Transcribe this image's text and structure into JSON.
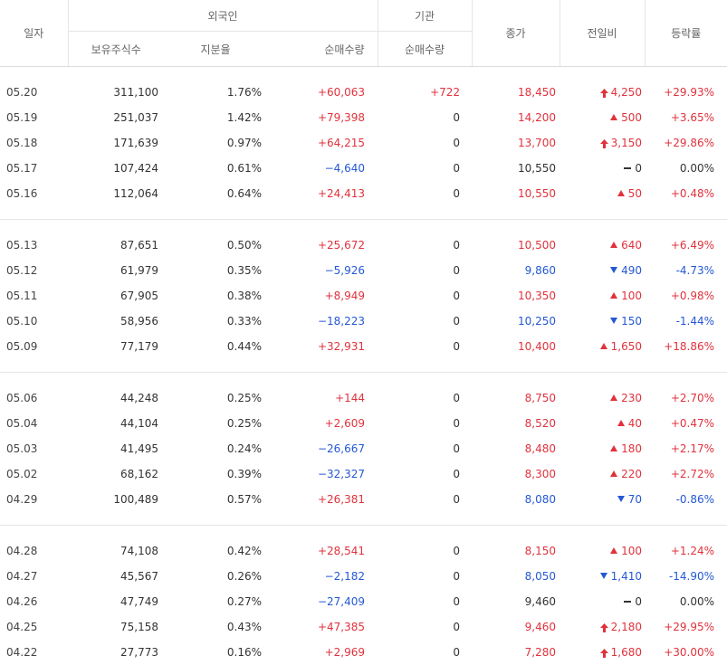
{
  "header": {
    "date": "일자",
    "foreign": "외국인",
    "institution": "기관",
    "close": "종가",
    "change": "전일비",
    "rate": "등락률",
    "holdings": "보유주식수",
    "ownership": "지분율",
    "foreign_net": "순매수량",
    "inst_net": "순매수량"
  },
  "colors": {
    "up": "#e0323c",
    "down": "#2458d4",
    "neutral": "#333333"
  },
  "groups": [
    [
      {
        "date": "05.20",
        "holdings": "311,100",
        "ownership": "1.76%",
        "foreign_net": "+60,063",
        "fn_dir": "up",
        "inst_net": "+722",
        "in_dir": "up",
        "close": "18,450",
        "close_dir": "up",
        "change_icon": "upper-limit-arrow-icon",
        "change": "4,250",
        "rate": "+29.93%",
        "rate_dir": "up"
      },
      {
        "date": "05.19",
        "holdings": "251,037",
        "ownership": "1.42%",
        "foreign_net": "+79,398",
        "fn_dir": "up",
        "inst_net": "0",
        "in_dir": "neutral",
        "close": "14,200",
        "close_dir": "up",
        "change_icon": "triangle-up-icon",
        "change": "500",
        "rate": "+3.65%",
        "rate_dir": "up"
      },
      {
        "date": "05.18",
        "holdings": "171,639",
        "ownership": "0.97%",
        "foreign_net": "+64,215",
        "fn_dir": "up",
        "inst_net": "0",
        "in_dir": "neutral",
        "close": "13,700",
        "close_dir": "up",
        "change_icon": "upper-limit-arrow-icon",
        "change": "3,150",
        "rate": "+29.86%",
        "rate_dir": "up"
      },
      {
        "date": "05.17",
        "holdings": "107,424",
        "ownership": "0.61%",
        "foreign_net": "−4,640",
        "fn_dir": "down",
        "inst_net": "0",
        "in_dir": "neutral",
        "close": "10,550",
        "close_dir": "neutral",
        "change_icon": "dash-icon",
        "change": "0",
        "rate": "0.00%",
        "rate_dir": "neutral"
      },
      {
        "date": "05.16",
        "holdings": "112,064",
        "ownership": "0.64%",
        "foreign_net": "+24,413",
        "fn_dir": "up",
        "inst_net": "0",
        "in_dir": "neutral",
        "close": "10,550",
        "close_dir": "up",
        "change_icon": "triangle-up-icon",
        "change": "50",
        "rate": "+0.48%",
        "rate_dir": "up"
      }
    ],
    [
      {
        "date": "05.13",
        "holdings": "87,651",
        "ownership": "0.50%",
        "foreign_net": "+25,672",
        "fn_dir": "up",
        "inst_net": "0",
        "in_dir": "neutral",
        "close": "10,500",
        "close_dir": "up",
        "change_icon": "triangle-up-icon",
        "change": "640",
        "rate": "+6.49%",
        "rate_dir": "up"
      },
      {
        "date": "05.12",
        "holdings": "61,979",
        "ownership": "0.35%",
        "foreign_net": "−5,926",
        "fn_dir": "down",
        "inst_net": "0",
        "in_dir": "neutral",
        "close": "9,860",
        "close_dir": "down",
        "change_icon": "triangle-down-icon",
        "change": "490",
        "rate": "-4.73%",
        "rate_dir": "down"
      },
      {
        "date": "05.11",
        "holdings": "67,905",
        "ownership": "0.38%",
        "foreign_net": "+8,949",
        "fn_dir": "up",
        "inst_net": "0",
        "in_dir": "neutral",
        "close": "10,350",
        "close_dir": "up",
        "change_icon": "triangle-up-icon",
        "change": "100",
        "rate": "+0.98%",
        "rate_dir": "up"
      },
      {
        "date": "05.10",
        "holdings": "58,956",
        "ownership": "0.33%",
        "foreign_net": "−18,223",
        "fn_dir": "down",
        "inst_net": "0",
        "in_dir": "neutral",
        "close": "10,250",
        "close_dir": "down",
        "change_icon": "triangle-down-icon",
        "change": "150",
        "rate": "-1.44%",
        "rate_dir": "down"
      },
      {
        "date": "05.09",
        "holdings": "77,179",
        "ownership": "0.44%",
        "foreign_net": "+32,931",
        "fn_dir": "up",
        "inst_net": "0",
        "in_dir": "neutral",
        "close": "10,400",
        "close_dir": "up",
        "change_icon": "triangle-up-icon",
        "change": "1,650",
        "rate": "+18.86%",
        "rate_dir": "up"
      }
    ],
    [
      {
        "date": "05.06",
        "holdings": "44,248",
        "ownership": "0.25%",
        "foreign_net": "+144",
        "fn_dir": "up",
        "inst_net": "0",
        "in_dir": "neutral",
        "close": "8,750",
        "close_dir": "up",
        "change_icon": "triangle-up-icon",
        "change": "230",
        "rate": "+2.70%",
        "rate_dir": "up"
      },
      {
        "date": "05.04",
        "holdings": "44,104",
        "ownership": "0.25%",
        "foreign_net": "+2,609",
        "fn_dir": "up",
        "inst_net": "0",
        "in_dir": "neutral",
        "close": "8,520",
        "close_dir": "up",
        "change_icon": "triangle-up-icon",
        "change": "40",
        "rate": "+0.47%",
        "rate_dir": "up"
      },
      {
        "date": "05.03",
        "holdings": "41,495",
        "ownership": "0.24%",
        "foreign_net": "−26,667",
        "fn_dir": "down",
        "inst_net": "0",
        "in_dir": "neutral",
        "close": "8,480",
        "close_dir": "up",
        "change_icon": "triangle-up-icon",
        "change": "180",
        "rate": "+2.17%",
        "rate_dir": "up"
      },
      {
        "date": "05.02",
        "holdings": "68,162",
        "ownership": "0.39%",
        "foreign_net": "−32,327",
        "fn_dir": "down",
        "inst_net": "0",
        "in_dir": "neutral",
        "close": "8,300",
        "close_dir": "up",
        "change_icon": "triangle-up-icon",
        "change": "220",
        "rate": "+2.72%",
        "rate_dir": "up"
      },
      {
        "date": "04.29",
        "holdings": "100,489",
        "ownership": "0.57%",
        "foreign_net": "+26,381",
        "fn_dir": "up",
        "inst_net": "0",
        "in_dir": "neutral",
        "close": "8,080",
        "close_dir": "down",
        "change_icon": "triangle-down-icon",
        "change": "70",
        "rate": "-0.86%",
        "rate_dir": "down"
      }
    ],
    [
      {
        "date": "04.28",
        "holdings": "74,108",
        "ownership": "0.42%",
        "foreign_net": "+28,541",
        "fn_dir": "up",
        "inst_net": "0",
        "in_dir": "neutral",
        "close": "8,150",
        "close_dir": "up",
        "change_icon": "triangle-up-icon",
        "change": "100",
        "rate": "+1.24%",
        "rate_dir": "up"
      },
      {
        "date": "04.27",
        "holdings": "45,567",
        "ownership": "0.26%",
        "foreign_net": "−2,182",
        "fn_dir": "down",
        "inst_net": "0",
        "in_dir": "neutral",
        "close": "8,050",
        "close_dir": "down",
        "change_icon": "triangle-down-icon",
        "change": "1,410",
        "rate": "-14.90%",
        "rate_dir": "down"
      },
      {
        "date": "04.26",
        "holdings": "47,749",
        "ownership": "0.27%",
        "foreign_net": "−27,409",
        "fn_dir": "down",
        "inst_net": "0",
        "in_dir": "neutral",
        "close": "9,460",
        "close_dir": "neutral",
        "change_icon": "dash-icon",
        "change": "0",
        "rate": "0.00%",
        "rate_dir": "neutral"
      },
      {
        "date": "04.25",
        "holdings": "75,158",
        "ownership": "0.43%",
        "foreign_net": "+47,385",
        "fn_dir": "up",
        "inst_net": "0",
        "in_dir": "neutral",
        "close": "9,460",
        "close_dir": "up",
        "change_icon": "upper-limit-arrow-icon",
        "change": "2,180",
        "rate": "+29.95%",
        "rate_dir": "up"
      },
      {
        "date": "04.22",
        "holdings": "27,773",
        "ownership": "0.16%",
        "foreign_net": "+2,969",
        "fn_dir": "up",
        "inst_net": "0",
        "in_dir": "neutral",
        "close": "7,280",
        "close_dir": "up",
        "change_icon": "upper-limit-arrow-icon",
        "change": "1,680",
        "rate": "+30.00%",
        "rate_dir": "up"
      }
    ]
  ]
}
